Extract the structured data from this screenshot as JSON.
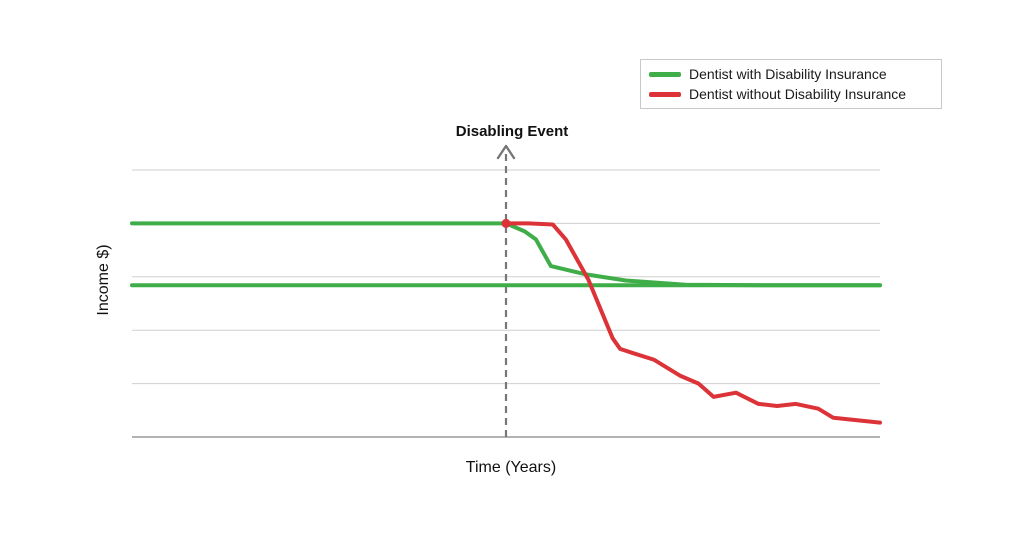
{
  "chart_data": {
    "type": "line",
    "title": "",
    "xlabel": "Time (Years)",
    "ylabel": "Income $)",
    "annotation": "Disabling Event",
    "event_x": 0,
    "xlim": [
      -10,
      10
    ],
    "ylim": [
      0,
      5
    ],
    "grid": true,
    "legend_position": "top-right",
    "series": [
      {
        "name": "Dentist with Disability Insurance",
        "color": "#3fae49",
        "x": [
          -10,
          -0.05,
          0,
          0.5,
          0.8,
          1.2,
          2.1,
          3.2,
          4.8,
          7.2,
          10
        ],
        "y": [
          4.0,
          4.0,
          4.0,
          3.85,
          3.7,
          3.2,
          3.05,
          2.93,
          2.85,
          2.84,
          2.84
        ]
      },
      {
        "name": "",
        "color": "#3fae49",
        "x": [
          -10,
          0,
          10
        ],
        "y": [
          2.84,
          2.84,
          2.84
        ]
      },
      {
        "name": "Dentist without Disability Insurance",
        "color": "#dc3338",
        "x": [
          0,
          0.6,
          1.25,
          1.6,
          2.2,
          2.85,
          3.05,
          3.4,
          3.95,
          4.65,
          5.15,
          5.55,
          6.15,
          6.75,
          7.25,
          7.75,
          8.35,
          8.75,
          10
        ],
        "y": [
          4.0,
          4.0,
          3.98,
          3.7,
          2.95,
          1.85,
          1.65,
          1.57,
          1.45,
          1.15,
          1.0,
          0.75,
          0.83,
          0.62,
          0.58,
          0.62,
          0.53,
          0.36,
          0.27
        ]
      }
    ]
  }
}
